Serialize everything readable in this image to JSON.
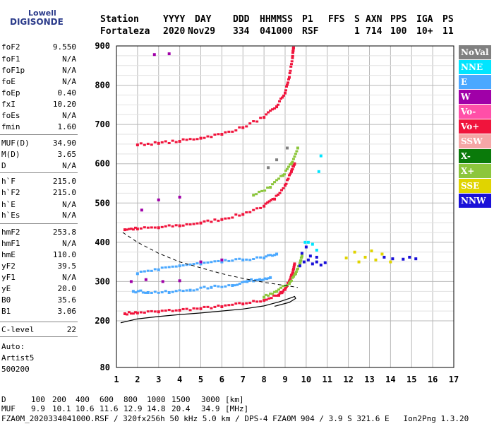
{
  "logo": {
    "line1": "Lowell",
    "line2": "DIGISONDE"
  },
  "header": {
    "labels": [
      "Station",
      "YYYY",
      "DAY",
      "DDD",
      "HHMMSS",
      "P1",
      "FFS",
      "S",
      "AXN",
      "PPS",
      "IGA",
      "PS"
    ],
    "values": [
      "Fortaleza",
      "2020",
      "Nov29",
      "334",
      "041000",
      "RSF",
      "1",
      "714",
      "100",
      "10+",
      "11"
    ]
  },
  "params": [
    {
      "name": "foF2",
      "value": "9.550"
    },
    {
      "name": "foF1",
      "value": "N/A"
    },
    {
      "name": "foF1p",
      "value": "N/A"
    },
    {
      "name": "foE",
      "value": "N/A"
    },
    {
      "name": "foEp",
      "value": "0.40"
    },
    {
      "name": "fxI",
      "value": "10.20"
    },
    {
      "name": "foEs",
      "value": "N/A"
    },
    {
      "name": "fmin",
      "value": "1.60"
    },
    {
      "name": "MUF(D)",
      "value": "34.90"
    },
    {
      "name": "M(D)",
      "value": "3.65"
    },
    {
      "name": "D",
      "value": "N/A"
    },
    {
      "name": "h`F",
      "value": "215.0"
    },
    {
      "name": "h`F2",
      "value": "215.0"
    },
    {
      "name": "h`E",
      "value": "N/A"
    },
    {
      "name": "h`Es",
      "value": "N/A"
    },
    {
      "name": "hmF2",
      "value": "253.8"
    },
    {
      "name": "hmF1",
      "value": "N/A"
    },
    {
      "name": "hmE",
      "value": "110.0"
    },
    {
      "name": "yF2",
      "value": "39.5"
    },
    {
      "name": "yF1",
      "value": "N/A"
    },
    {
      "name": "yE",
      "value": "20.0"
    },
    {
      "name": "B0",
      "value": "35.6"
    },
    {
      "name": "B1",
      "value": "3.06"
    },
    {
      "name": "C-level",
      "value": "22"
    }
  ],
  "autoscaling": {
    "line1": "Auto:",
    "line2": "Artist5",
    "line3": "500200"
  },
  "legend": [
    {
      "label": "NoVal",
      "bg": "#808080",
      "fg": "#ffffff"
    },
    {
      "label": "NNE",
      "bg": "#00e5ff",
      "fg": "#ffffff"
    },
    {
      "label": "E",
      "bg": "#4aa8ff",
      "fg": "#ffffff"
    },
    {
      "label": "W",
      "bg": "#a000a8",
      "fg": "#ffffff"
    },
    {
      "label": "Vo-",
      "bg": "#ff4fa8",
      "fg": "#ffffff"
    },
    {
      "label": "Vo+",
      "bg": "#f0143c",
      "fg": "#ffffff"
    },
    {
      "label": "SSW",
      "bg": "#f5a6a6",
      "fg": "#ffffff"
    },
    {
      "label": "X-",
      "bg": "#0a7a0a",
      "fg": "#ffffff"
    },
    {
      "label": "X+",
      "bg": "#8cc63c",
      "fg": "#ffffff"
    },
    {
      "label": "SSE",
      "bg": "#e0d400",
      "fg": "#ffffff"
    },
    {
      "label": "NNW",
      "bg": "#1a10d8",
      "fg": "#ffffff"
    }
  ],
  "footer": {
    "d_label": "D",
    "d_values": [
      "100",
      "200",
      "400",
      "600",
      "800",
      "1000",
      "1500",
      "3000",
      "[km]"
    ],
    "muf_label": "MUF",
    "muf_values": [
      "9.9",
      "10.1",
      "10.6",
      "11.6",
      "12.9",
      "14.8",
      "20.4",
      "34.9",
      "[MHz]"
    ],
    "info": "FZA0M_2020334041000.RSF / 320fx256h 50 kHz 5.0 km / DPS-4 FZA0M 904 / 3.9 S 321.6 E   Ion2Png 1.3.20"
  },
  "chart_data": {
    "type": "scatter",
    "title": "",
    "xlabel": "",
    "ylabel": "",
    "xlim": [
      1,
      17
    ],
    "ylim": [
      80,
      900
    ],
    "x_ticks": [
      1,
      2,
      3,
      4,
      5,
      6,
      7,
      8,
      9,
      10,
      11,
      12,
      13,
      14,
      15,
      16,
      17
    ],
    "y_ticks": [
      80,
      200,
      300,
      400,
      500,
      600,
      700,
      800,
      900
    ],
    "grid": true,
    "legend_position": "right",
    "series": [
      {
        "name": "Vo+",
        "color": "#f0143c",
        "points": [
          [
            1.4,
            218
          ],
          [
            2.0,
            220
          ],
          [
            3.0,
            223
          ],
          [
            4.0,
            227
          ],
          [
            5.0,
            231
          ],
          [
            6.0,
            236
          ],
          [
            7.0,
            243
          ],
          [
            8.0,
            252
          ],
          [
            8.7,
            265
          ],
          [
            9.0,
            280
          ],
          [
            9.2,
            300
          ],
          [
            9.35,
            320
          ],
          [
            9.45,
            345
          ]
        ]
      },
      {
        "name": "Vo+",
        "color": "#f0143c",
        "points": [
          [
            1.4,
            432
          ],
          [
            2.0,
            434
          ],
          [
            3.0,
            437
          ],
          [
            4.0,
            442
          ],
          [
            5.0,
            449
          ],
          [
            6.0,
            458
          ],
          [
            7.0,
            471
          ],
          [
            8.0,
            492
          ],
          [
            8.5,
            510
          ],
          [
            9.0,
            545
          ],
          [
            9.3,
            580
          ],
          [
            9.45,
            600
          ]
        ]
      },
      {
        "name": "Vo+",
        "color": "#f0143c",
        "points": [
          [
            2.0,
            648
          ],
          [
            3.0,
            652
          ],
          [
            4.0,
            657
          ],
          [
            5.0,
            665
          ],
          [
            6.0,
            675
          ],
          [
            7.0,
            692
          ],
          [
            8.0,
            718
          ],
          [
            8.6,
            745
          ],
          [
            9.0,
            780
          ],
          [
            9.2,
            820
          ],
          [
            9.35,
            870
          ],
          [
            9.4,
            895
          ]
        ]
      },
      {
        "name": "X+",
        "color": "#8cc63c",
        "points": [
          [
            8.0,
            260
          ],
          [
            8.6,
            275
          ],
          [
            9.2,
            295
          ],
          [
            9.5,
            320
          ],
          [
            9.7,
            345
          ],
          [
            9.8,
            365
          ]
        ]
      },
      {
        "name": "X+",
        "color": "#8cc63c",
        "points": [
          [
            7.5,
            520
          ],
          [
            8.3,
            540
          ],
          [
            8.9,
            570
          ],
          [
            9.3,
            600
          ],
          [
            9.6,
            640
          ]
        ]
      },
      {
        "name": "E",
        "color": "#4aa8ff",
        "points": [
          [
            1.8,
            275
          ],
          [
            2.5,
            272
          ],
          [
            3.5,
            272
          ],
          [
            4.5,
            278
          ],
          [
            5.5,
            285
          ],
          [
            6.5,
            290
          ],
          [
            7.2,
            300
          ],
          [
            7.8,
            305
          ],
          [
            8.3,
            310
          ]
        ]
      },
      {
        "name": "E",
        "color": "#4aa8ff",
        "points": [
          [
            2.0,
            320
          ],
          [
            3.0,
            330
          ],
          [
            4.0,
            340
          ],
          [
            5.0,
            345
          ],
          [
            6.0,
            350
          ],
          [
            7.0,
            355
          ],
          [
            8.0,
            360
          ],
          [
            8.6,
            370
          ]
        ]
      },
      {
        "name": "NNW",
        "color": "#1a10d8",
        "points": [
          [
            9.7,
            340
          ],
          [
            9.9,
            350
          ],
          [
            10.1,
            355
          ],
          [
            10.3,
            345
          ],
          [
            10.5,
            350
          ],
          [
            10.7,
            342
          ],
          [
            10.9,
            348
          ],
          [
            9.8,
            372
          ],
          [
            10.2,
            365
          ],
          [
            10.5,
            362
          ],
          [
            10.0,
            388
          ],
          [
            13.7,
            362
          ],
          [
            14.1,
            358
          ],
          [
            14.6,
            357
          ],
          [
            14.9,
            362
          ],
          [
            15.2,
            358
          ]
        ]
      },
      {
        "name": "SSE",
        "color": "#e0d400",
        "points": [
          [
            11.9,
            360
          ],
          [
            12.3,
            375
          ],
          [
            12.8,
            362
          ],
          [
            13.1,
            378
          ],
          [
            13.3,
            355
          ],
          [
            13.6,
            370
          ],
          [
            14.0,
            350
          ],
          [
            12.5,
            350
          ]
        ]
      },
      {
        "name": "W",
        "color": "#a000a8",
        "points": [
          [
            1.7,
            300
          ],
          [
            2.4,
            305
          ],
          [
            3.2,
            300
          ],
          [
            4.0,
            302
          ],
          [
            5.0,
            350
          ],
          [
            6.0,
            355
          ],
          [
            3.0,
            508
          ],
          [
            4.0,
            515
          ],
          [
            2.2,
            482
          ],
          [
            3.5,
            880
          ],
          [
            2.8,
            878
          ]
        ]
      },
      {
        "name": "NNE",
        "color": "#00e5ff",
        "points": [
          [
            10.1,
            400
          ],
          [
            10.3,
            395
          ],
          [
            10.6,
            580
          ],
          [
            10.7,
            620
          ],
          [
            10.5,
            380
          ],
          [
            9.95,
            400
          ]
        ]
      },
      {
        "name": "NoVal",
        "color": "#808080",
        "points": [
          [
            8.2,
            590
          ],
          [
            8.6,
            610
          ],
          [
            9.1,
            640
          ]
        ]
      }
    ],
    "model_profile": {
      "name": "profile",
      "color": "#000000",
      "points": [
        [
          1.2,
          195
        ],
        [
          2.0,
          205
        ],
        [
          3.0,
          211
        ],
        [
          4.0,
          216
        ],
        [
          5.0,
          220
        ],
        [
          6.0,
          225
        ],
        [
          7.0,
          230
        ],
        [
          8.0,
          238
        ],
        [
          8.7,
          248
        ],
        [
          9.2,
          257
        ],
        [
          9.45,
          262
        ],
        [
          9.5,
          257
        ],
        [
          9.2,
          247
        ],
        [
          8.5,
          237
        ]
      ]
    },
    "model_profile_dashed": {
      "name": "profile-dashed",
      "color": "#000000",
      "points": [
        [
          1.3,
          425
        ],
        [
          2.0,
          400
        ],
        [
          3.0,
          372
        ],
        [
          4.0,
          350
        ],
        [
          5.0,
          335
        ],
        [
          6.0,
          320
        ],
        [
          7.0,
          308
        ],
        [
          8.0,
          298
        ],
        [
          9.0,
          290
        ],
        [
          9.6,
          285
        ]
      ]
    }
  }
}
